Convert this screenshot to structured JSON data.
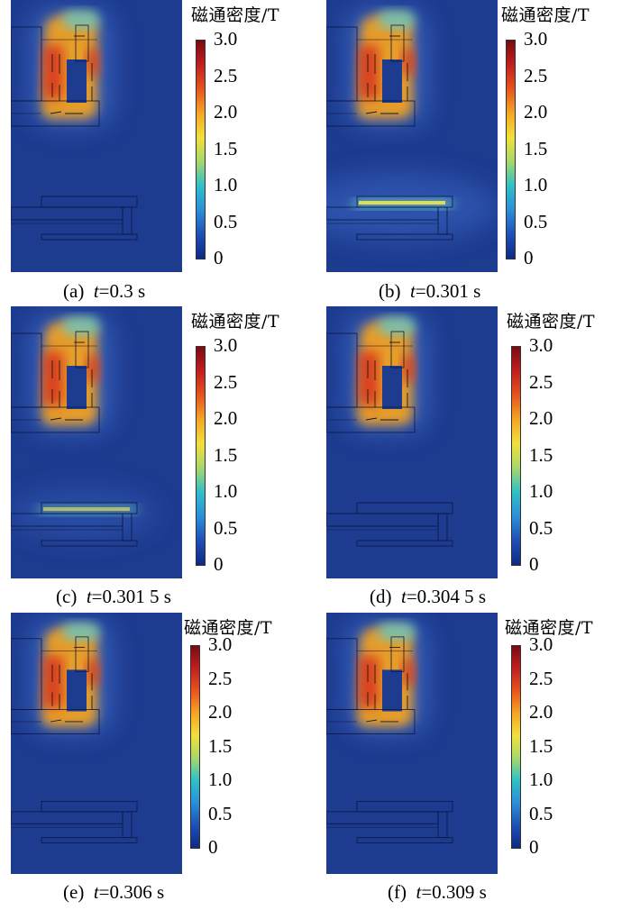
{
  "colorbar": {
    "title": "磁通密度/T",
    "ticks": [
      "3.0",
      "2.5",
      "2.0",
      "1.5",
      "1.0",
      "0.5",
      "0"
    ],
    "range": [
      0,
      3.0
    ],
    "colors": [
      "#7a0a12",
      "#c41e1e",
      "#e8541c",
      "#f5a623",
      "#f2e03a",
      "#a7d86a",
      "#2ec0c9",
      "#2a8fd8",
      "#1e4fb8",
      "#0c2a85"
    ]
  },
  "field_colors": {
    "background": "#1d3b8f",
    "high": "#f0a020",
    "peak": "#d8321c",
    "mid": "#6cc7c0",
    "glow": "#3a66c4"
  },
  "panels": [
    {
      "label": "(a)",
      "t_symbol": "t",
      "t_value": "=0.3 s",
      "armature_glow": 0
    },
    {
      "label": "(b)",
      "t_symbol": "t",
      "t_value": "=0.301 s",
      "armature_glow": 1
    },
    {
      "label": "(c)",
      "t_symbol": "t",
      "t_value": "=0.301 5 s",
      "armature_glow": 0.7
    },
    {
      "label": "(d)",
      "t_symbol": "t",
      "t_value": "=0.304 5 s",
      "armature_glow": 0
    },
    {
      "label": "(e)",
      "t_symbol": "t",
      "t_value": "=0.306 s",
      "armature_glow": 0
    },
    {
      "label": "(f)",
      "t_symbol": "t",
      "t_value": "=0.309 s",
      "armature_glow": 0
    }
  ]
}
